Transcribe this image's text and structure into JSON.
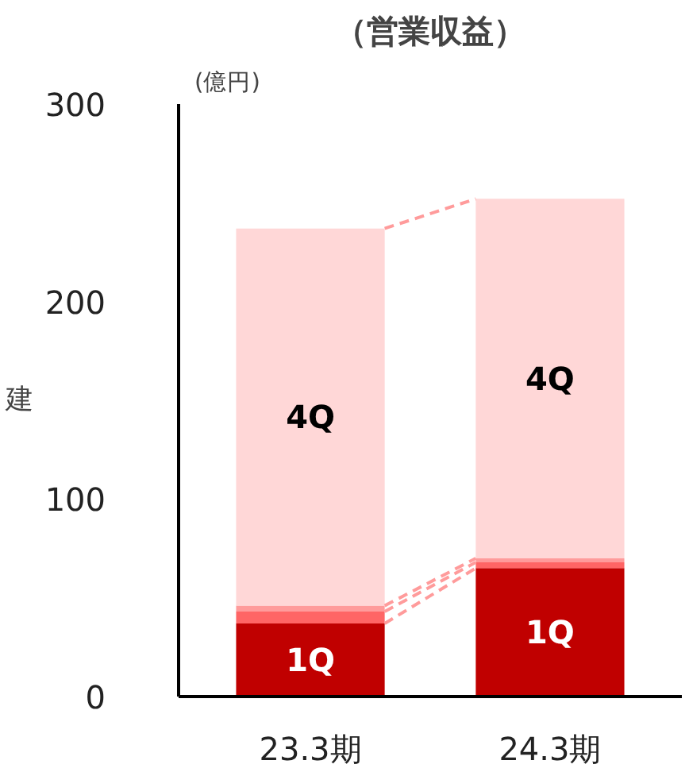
{
  "chart_data": {
    "type": "bar",
    "title": "（営業収益）",
    "ylabel": "(億円)",
    "stacked": true,
    "categories": [
      "23.3期",
      "24.3期"
    ],
    "series": [
      {
        "name": "1Q",
        "color": "#c00000",
        "values": [
          37,
          65
        ]
      },
      {
        "color": "#ff6565",
        "values": [
          6,
          3
        ]
      },
      {
        "color": "#ff9b9b",
        "values": [
          3,
          2
        ]
      },
      {
        "name": "4Q",
        "color": "#ffd7d7",
        "values": [
          191,
          182
        ]
      }
    ],
    "ylim": [
      0,
      300
    ],
    "yticks": [
      0,
      100,
      200,
      300
    ],
    "grid": false,
    "annotations": [
      "建"
    ]
  }
}
